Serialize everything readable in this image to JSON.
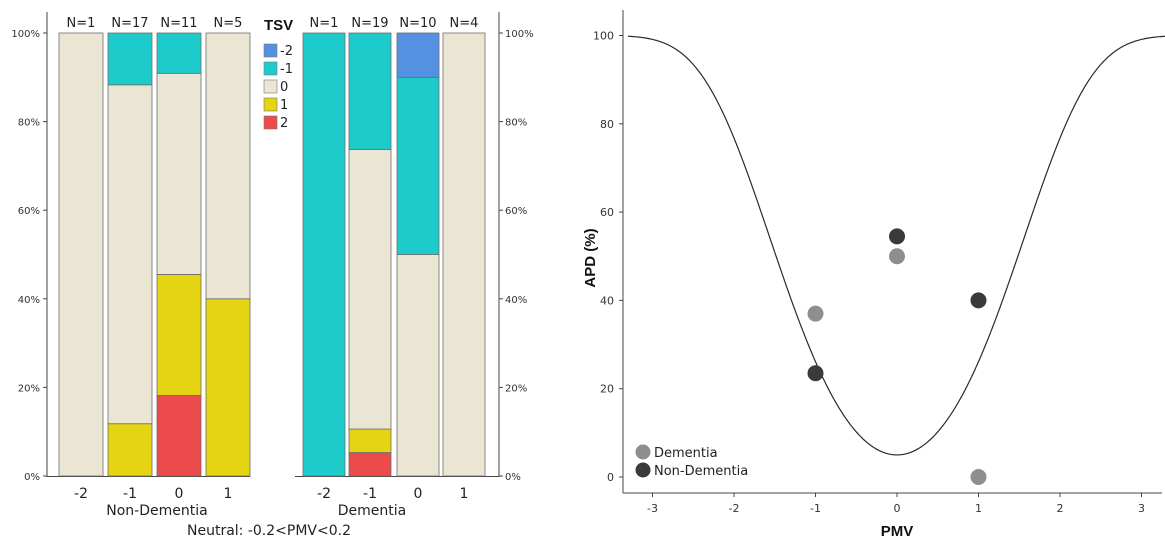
{
  "chart_data": [
    {
      "type": "bar",
      "stacked": true,
      "percent": true,
      "legend_title": "TSV",
      "legend": [
        {
          "label": "-2",
          "color": "#5591e3"
        },
        {
          "label": "-1",
          "color": "#1ecbcb"
        },
        {
          "label": "0",
          "color": "#ebe6d4"
        },
        {
          "label": "1",
          "color": "#e4d412"
        },
        {
          "label": "2",
          "color": "#ec4b4b"
        }
      ],
      "y_ticks": [
        "0%",
        "20%",
        "40%",
        "60%",
        "80%",
        "100%"
      ],
      "caption": "Neutral: -0.2<PMV<0.2",
      "groups": [
        {
          "name": "Non-Dementia",
          "categories": [
            "-2",
            "-1",
            "0",
            "1"
          ],
          "n_labels": [
            "N=1",
            "N=17",
            "N=11",
            "N=5"
          ],
          "stacks": [
            {
              "2": 0,
              "1": 0,
              "0": 100,
              "-1": 0,
              "-2": 0
            },
            {
              "2": 0,
              "1": 11.8,
              "0": 76.5,
              "-1": 11.7,
              "-2": 0
            },
            {
              "2": 18.2,
              "1": 27.3,
              "0": 45.4,
              "-1": 9.1,
              "-2": 0
            },
            {
              "2": 0,
              "1": 40,
              "0": 60,
              "-1": 0,
              "-2": 0
            }
          ]
        },
        {
          "name": "Dementia",
          "categories": [
            "-2",
            "-1",
            "0",
            "1"
          ],
          "n_labels": [
            "N=1",
            "N=19",
            "N=10",
            "N=4"
          ],
          "stacks": [
            {
              "2": 0,
              "1": 0,
              "0": 0,
              "-1": 100,
              "-2": 0
            },
            {
              "2": 5.3,
              "1": 5.3,
              "0": 63.1,
              "-1": 26.3,
              "-2": 0
            },
            {
              "2": 0,
              "1": 0,
              "0": 50,
              "-1": 40,
              "-2": 10
            },
            {
              "2": 0,
              "1": 0,
              "0": 100,
              "-1": 0,
              "-2": 0
            }
          ]
        }
      ]
    },
    {
      "type": "scatter",
      "xlabel": "PMV",
      "ylabel": "APD (%)",
      "xlim": [
        -3.3,
        3.3
      ],
      "ylim": [
        -3,
        106
      ],
      "x_ticks": [
        -3,
        -2,
        -1,
        0,
        1,
        2,
        3
      ],
      "y_ticks": [
        0,
        20,
        40,
        60,
        80,
        100
      ],
      "curve": "PPD model: 100 - 95*exp(-0.03353*PMV^4 - 0.2179*PMV^2)",
      "series": [
        {
          "name": "Dementia",
          "color": "#8f8e8e",
          "x": [
            -1,
            0,
            1
          ],
          "y": [
            37,
            50,
            0
          ]
        },
        {
          "name": "Non-Dementia",
          "color": "#3a3a3a",
          "x": [
            -1,
            0,
            1
          ],
          "y": [
            23.5,
            54.5,
            40
          ]
        }
      ],
      "legend_position": "bottom-left"
    }
  ]
}
